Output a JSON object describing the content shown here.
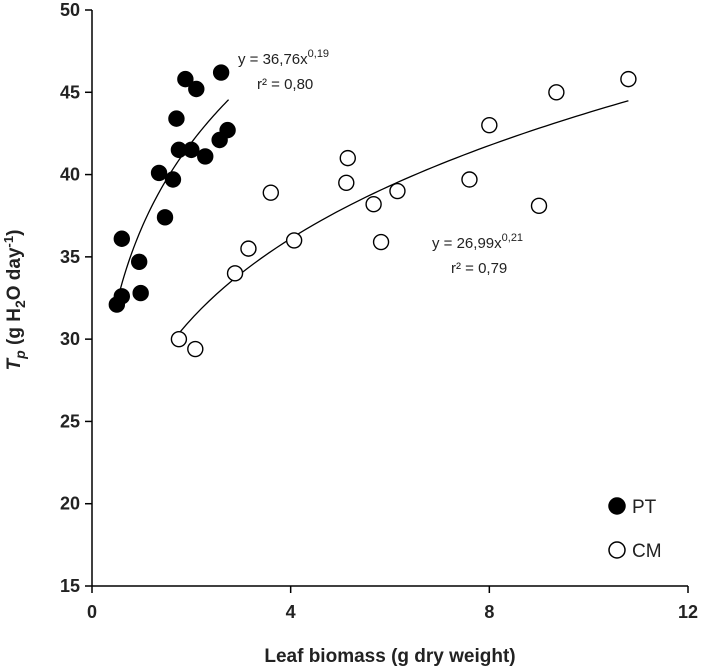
{
  "chart_data": {
    "type": "scatter",
    "xlabel": "Leaf biomass (g dry weight)",
    "ylabel": {
      "main": "T",
      "sub": "p",
      "unit_prefix": " (g H",
      "unit_sub": "2",
      "unit_mid": "O day",
      "unit_sup": "-1",
      "unit_suffix": ")"
    },
    "xlim": [
      0,
      12
    ],
    "ylim": [
      15,
      50
    ],
    "xticks": [
      "0",
      "4",
      "8",
      "12"
    ],
    "xtick_values": [
      0,
      4,
      8,
      12
    ],
    "yticks": [
      "15",
      "20",
      "25",
      "30",
      "35",
      "40",
      "45",
      "50"
    ],
    "ytick_values": [
      15,
      20,
      25,
      30,
      35,
      40,
      45,
      50
    ],
    "grid": false,
    "legend_position": "bottom-right",
    "series": [
      {
        "name": "PT",
        "marker": "filled-circle",
        "color": "#000000",
        "points": [
          [
            0.5,
            32.1
          ],
          [
            0.6,
            32.6
          ],
          [
            0.6,
            36.1
          ],
          [
            0.95,
            34.7
          ],
          [
            0.98,
            32.8
          ],
          [
            1.35,
            40.1
          ],
          [
            1.47,
            37.4
          ],
          [
            1.63,
            39.7
          ],
          [
            1.7,
            43.4
          ],
          [
            1.75,
            41.5
          ],
          [
            1.88,
            45.8
          ],
          [
            2.0,
            41.5
          ],
          [
            2.1,
            45.2
          ],
          [
            2.28,
            41.1
          ],
          [
            2.57,
            42.1
          ],
          [
            2.6,
            46.2
          ],
          [
            2.73,
            42.7
          ]
        ],
        "fit": {
          "a": 36.76,
          "b": 0.19,
          "x_range": [
            0.5,
            2.75
          ],
          "equation_text": "y = 36,76x",
          "equation_exp": "0,19",
          "r2_text": "r² = 0,80"
        }
      },
      {
        "name": "CM",
        "marker": "open-circle",
        "color": "#000000",
        "points": [
          [
            1.75,
            30.0
          ],
          [
            2.08,
            29.4
          ],
          [
            2.88,
            34.0
          ],
          [
            3.15,
            35.5
          ],
          [
            3.6,
            38.9
          ],
          [
            4.07,
            36.0
          ],
          [
            5.15,
            41.0
          ],
          [
            5.12,
            39.5
          ],
          [
            5.67,
            38.2
          ],
          [
            5.82,
            35.9
          ],
          [
            6.15,
            39.0
          ],
          [
            7.6,
            39.7
          ],
          [
            8.0,
            43.0
          ],
          [
            9.0,
            38.1
          ],
          [
            9.35,
            45.0
          ],
          [
            10.8,
            45.8
          ]
        ],
        "fit": {
          "a": 26.99,
          "b": 0.21,
          "x_range": [
            1.75,
            10.8
          ],
          "equation_text": "y = 26,99x",
          "equation_exp": "0,21",
          "r2_text": "r² = 0,79"
        }
      }
    ]
  }
}
